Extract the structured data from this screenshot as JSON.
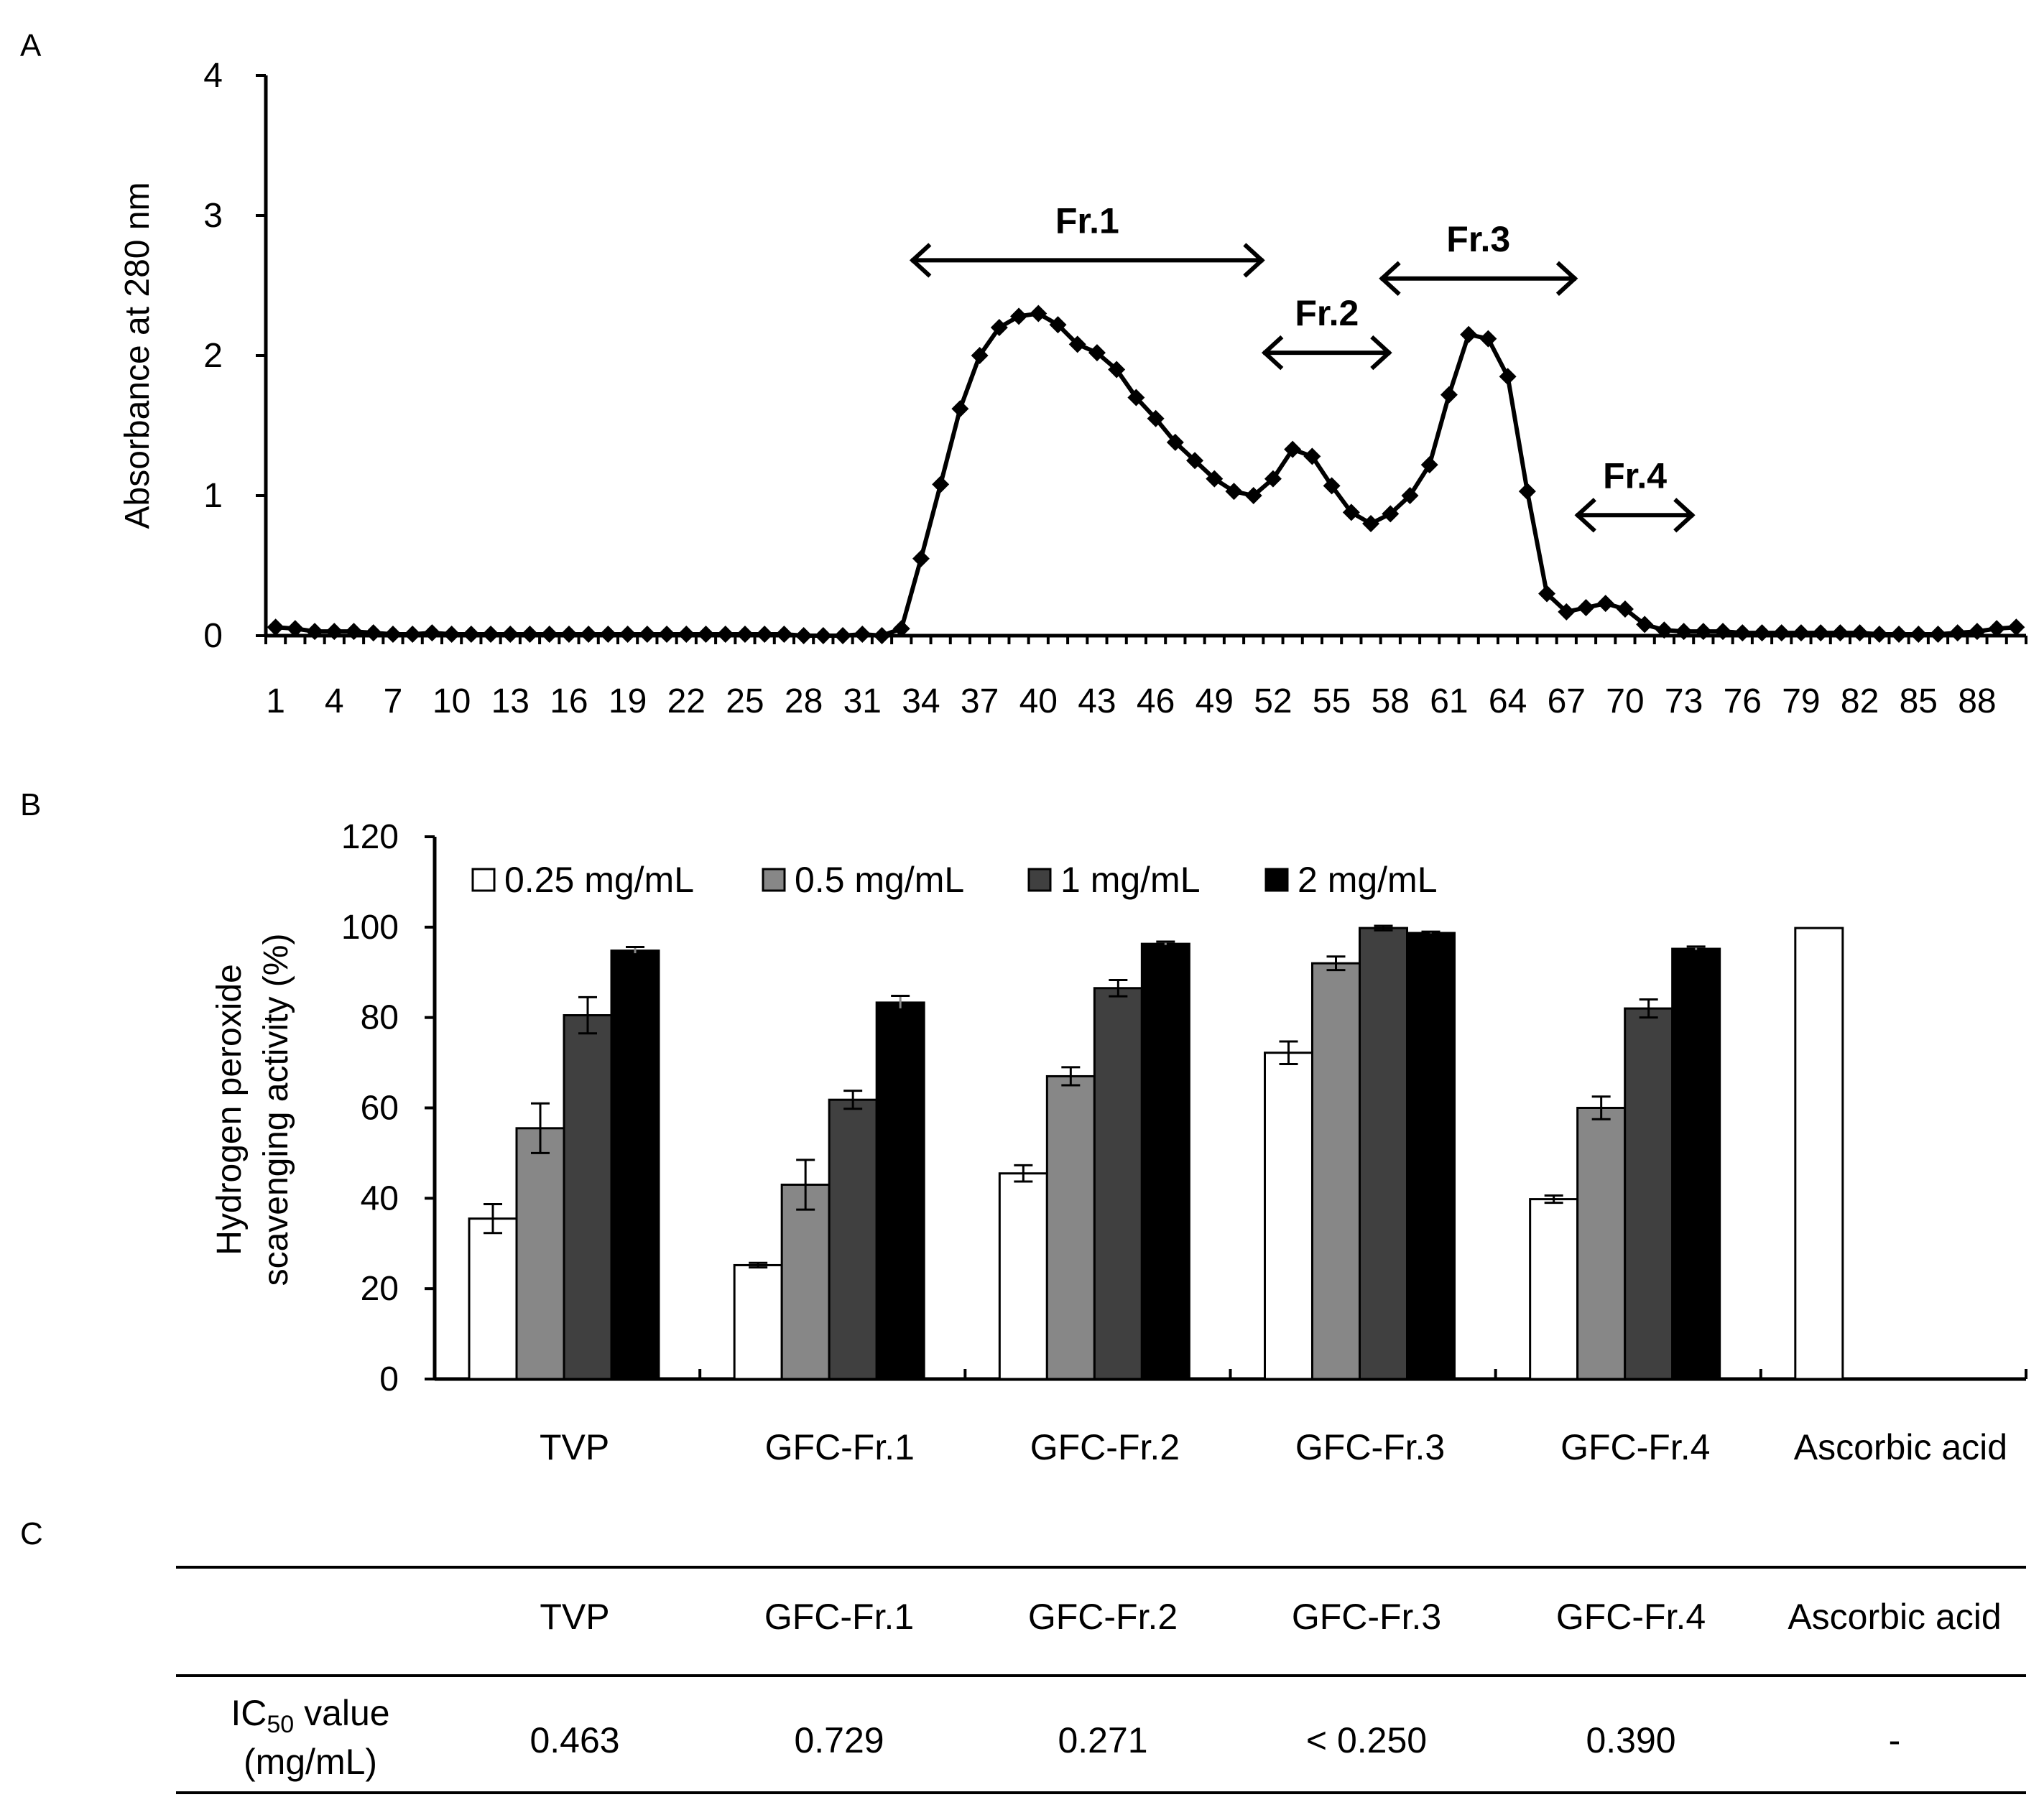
{
  "panels": {
    "a": "A",
    "b": "B",
    "c": "C"
  },
  "chart_data": [
    {
      "type": "line",
      "panel": "A",
      "ylabel": "Absorbance at 280 nm",
      "xlabel": "",
      "ylim": [
        0,
        4
      ],
      "yticks": [
        0,
        1,
        2,
        3,
        4
      ],
      "xlim": [
        1,
        90
      ],
      "xtick_labels": [
        1,
        4,
        7,
        10,
        13,
        16,
        19,
        22,
        25,
        28,
        31,
        34,
        37,
        40,
        43,
        46,
        49,
        52,
        55,
        58,
        61,
        64,
        67,
        70,
        73,
        76,
        79,
        82,
        85,
        88
      ],
      "x": [
        1,
        2,
        3,
        4,
        5,
        6,
        7,
        8,
        9,
        10,
        11,
        12,
        13,
        14,
        15,
        16,
        17,
        18,
        19,
        20,
        21,
        22,
        23,
        24,
        25,
        26,
        27,
        28,
        29,
        30,
        31,
        32,
        33,
        34,
        35,
        36,
        37,
        38,
        39,
        40,
        41,
        42,
        43,
        44,
        45,
        46,
        47,
        48,
        49,
        50,
        51,
        52,
        53,
        54,
        55,
        56,
        57,
        58,
        59,
        60,
        61,
        62,
        63,
        64,
        65,
        66,
        67,
        68,
        69,
        70,
        71,
        72,
        73,
        74,
        75,
        76,
        77,
        78,
        79,
        80,
        81,
        82,
        83,
        84,
        85,
        86,
        87,
        88,
        89,
        90
      ],
      "values": [
        0.06,
        0.05,
        0.03,
        0.03,
        0.03,
        0.02,
        0.01,
        0.01,
        0.02,
        0.01,
        0.01,
        0.01,
        0.01,
        0.01,
        0.01,
        0.01,
        0.01,
        0.01,
        0.01,
        0.01,
        0.01,
        0.01,
        0.01,
        0.01,
        0.01,
        0.01,
        0.01,
        0.0,
        0.0,
        0.0,
        0.01,
        0.0,
        0.05,
        0.55,
        1.08,
        1.62,
        2.0,
        2.2,
        2.28,
        2.3,
        2.22,
        2.08,
        2.02,
        1.9,
        1.7,
        1.55,
        1.38,
        1.25,
        1.12,
        1.03,
        1.0,
        1.12,
        1.33,
        1.28,
        1.07,
        0.88,
        0.8,
        0.87,
        1.0,
        1.22,
        1.72,
        2.15,
        2.12,
        1.85,
        1.03,
        0.3,
        0.17,
        0.2,
        0.23,
        0.19,
        0.08,
        0.04,
        0.03,
        0.03,
        0.03,
        0.02,
        0.02,
        0.02,
        0.02,
        0.02,
        0.02,
        0.02,
        0.01,
        0.01,
        0.01,
        0.01,
        0.02,
        0.03,
        0.05,
        0.06
      ],
      "fractions": [
        {
          "label": "Fr.1",
          "from": 33.5,
          "to": 51.5,
          "y": 2.68
        },
        {
          "label": "Fr.2",
          "from": 51.5,
          "to": 58,
          "y": 2.02
        },
        {
          "label": "Fr.3",
          "from": 57.5,
          "to": 67.5,
          "y": 2.55
        },
        {
          "label": "Fr.4",
          "from": 67.5,
          "to": 73.5,
          "y": 0.86
        }
      ]
    },
    {
      "type": "bar",
      "panel": "B",
      "ylabel_lines": [
        "Hydrogen peroxide",
        "scavenging activity (%)"
      ],
      "ylim": [
        0,
        120
      ],
      "yticks": [
        0,
        20,
        40,
        60,
        80,
        100,
        120
      ],
      "categories": [
        "TVP",
        "GFC-Fr.1",
        "GFC-Fr.2",
        "GFC-Fr.3",
        "GFC-Fr.4",
        "Ascorbic acid"
      ],
      "series": [
        {
          "name": "0.25 mg/mL",
          "color": "#ffffff",
          "values": [
            35.5,
            25.2,
            45.5,
            72.2,
            39.8,
            99.8
          ],
          "errors": [
            3.2,
            0.5,
            1.8,
            2.5,
            0.8,
            0
          ]
        },
        {
          "name": "0.5 mg/mL",
          "color": "#878787",
          "values": [
            55.5,
            43.0,
            67.0,
            92.0,
            60.0,
            null
          ],
          "errors": [
            5.5,
            5.5,
            2.0,
            1.5,
            2.5,
            null
          ]
        },
        {
          "name": "1 mg/mL",
          "color": "#404040",
          "values": [
            80.5,
            61.8,
            86.5,
            99.8,
            82.0,
            null
          ],
          "errors": [
            4.0,
            2.0,
            1.8,
            0.5,
            2.0,
            null
          ]
        },
        {
          "name": "2 mg/mL",
          "color": "#000000",
          "values": [
            94.8,
            83.3,
            96.3,
            98.7,
            95.2,
            null
          ],
          "errors": [
            0.8,
            1.5,
            0.5,
            0.3,
            0.5,
            null
          ]
        }
      ]
    }
  ],
  "ic50_table": {
    "row_label_main": "IC",
    "row_label_sub": "50",
    "row_label_rest": " value",
    "row_label_units": "(mg/mL)",
    "columns": [
      "TVP",
      "GFC-Fr.1",
      "GFC-Fr.2",
      "GFC-Fr.3",
      "GFC-Fr.4",
      "Ascorbic acid"
    ],
    "values": [
      "0.463",
      "0.729",
      "0.271",
      "< 0.250",
      "0.390",
      "-"
    ]
  }
}
